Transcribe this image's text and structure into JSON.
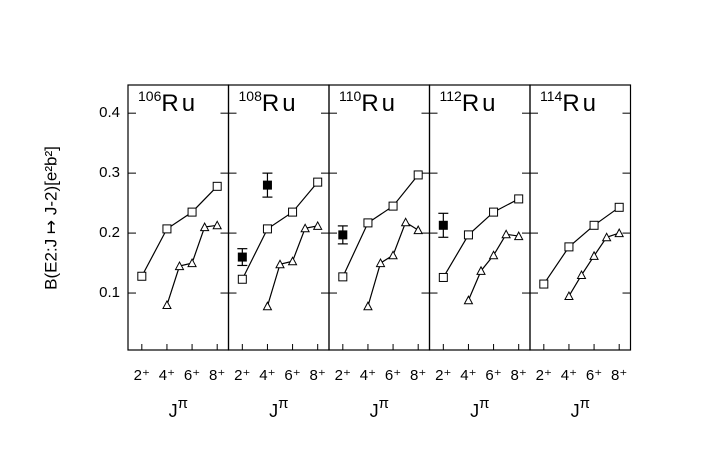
{
  "y_label": "B(E2:J ↦ J-2)[e²b²]",
  "chart_data": [
    {
      "type": "line",
      "title": {
        "mass": "106",
        "element": "Ru"
      },
      "x_label": {
        "base": "J",
        "sup": "π"
      },
      "xlim": [
        0.9,
        8.9
      ],
      "ylim": [
        0.005,
        0.447
      ],
      "xticks": [
        {
          "value": 2,
          "label": "2⁺"
        },
        {
          "value": 4,
          "label": "4⁺"
        },
        {
          "value": 6,
          "label": "6⁺"
        },
        {
          "value": 8,
          "label": "8⁺"
        }
      ],
      "yticks": [
        {
          "value": 0.1,
          "label": "0.1"
        },
        {
          "value": 0.2,
          "label": "0.2"
        },
        {
          "value": 0.3,
          "label": "0.3"
        },
        {
          "value": 0.4,
          "label": "0.4"
        }
      ],
      "series": [
        {
          "marker": "square",
          "x": [
            2,
            4,
            6,
            8
          ],
          "values": [
            0.128,
            0.207,
            0.235,
            0.278
          ]
        },
        {
          "marker": "triangle",
          "x": [
            4,
            5,
            6,
            7,
            8
          ],
          "values": [
            0.08,
            0.145,
            0.15,
            0.21,
            0.213
          ]
        }
      ]
    },
    {
      "type": "line",
      "title": {
        "mass": "108",
        "element": "Ru"
      },
      "x_label": {
        "base": "J",
        "sup": "π"
      },
      "xlim": [
        0.9,
        8.9
      ],
      "ylim": [
        0.005,
        0.447
      ],
      "xticks": [
        {
          "value": 2,
          "label": "2⁺"
        },
        {
          "value": 4,
          "label": "4⁺"
        },
        {
          "value": 6,
          "label": "6⁺"
        },
        {
          "value": 8,
          "label": "8⁺"
        }
      ],
      "yticks": [
        0.1,
        0.2,
        0.3,
        0.4
      ],
      "series": [
        {
          "marker": "square",
          "x": [
            2,
            4,
            6,
            8
          ],
          "values": [
            0.123,
            0.207,
            0.235,
            0.285
          ]
        },
        {
          "marker": "triangle",
          "x": [
            4,
            5,
            6,
            7,
            8
          ],
          "values": [
            0.078,
            0.148,
            0.153,
            0.208,
            0.212
          ]
        },
        {
          "marker": "filled-square",
          "x": [
            2,
            4
          ],
          "values": [
            0.16,
            0.28
          ],
          "errors": [
            0.014,
            0.02
          ]
        }
      ]
    },
    {
      "type": "line",
      "title": {
        "mass": "110",
        "element": "Ru"
      },
      "x_label": {
        "base": "J",
        "sup": "π"
      },
      "xlim": [
        0.9,
        8.9
      ],
      "ylim": [
        0.005,
        0.447
      ],
      "xticks": [
        {
          "value": 2,
          "label": "2⁺"
        },
        {
          "value": 4,
          "label": "4⁺"
        },
        {
          "value": 6,
          "label": "6⁺"
        },
        {
          "value": 8,
          "label": "8⁺"
        }
      ],
      "yticks": [
        0.1,
        0.2,
        0.3,
        0.4
      ],
      "series": [
        {
          "marker": "square",
          "x": [
            2,
            4,
            6,
            8
          ],
          "values": [
            0.127,
            0.217,
            0.245,
            0.297
          ]
        },
        {
          "marker": "triangle",
          "x": [
            4,
            5,
            6,
            7,
            8
          ],
          "values": [
            0.078,
            0.15,
            0.163,
            0.218,
            0.205
          ]
        },
        {
          "marker": "filled-square",
          "x": [
            2
          ],
          "values": [
            0.197
          ],
          "errors": [
            0.015
          ]
        }
      ]
    },
    {
      "type": "line",
      "title": {
        "mass": "112",
        "element": "Ru"
      },
      "x_label": {
        "base": "J",
        "sup": "π"
      },
      "xlim": [
        0.9,
        8.9
      ],
      "ylim": [
        0.005,
        0.447
      ],
      "xticks": [
        {
          "value": 2,
          "label": "2⁺"
        },
        {
          "value": 4,
          "label": "4⁺"
        },
        {
          "value": 6,
          "label": "6⁺"
        },
        {
          "value": 8,
          "label": "8⁺"
        }
      ],
      "yticks": [
        0.1,
        0.2,
        0.3,
        0.4
      ],
      "series": [
        {
          "marker": "square",
          "x": [
            2,
            4,
            6,
            8
          ],
          "values": [
            0.126,
            0.197,
            0.235,
            0.257
          ]
        },
        {
          "marker": "triangle",
          "x": [
            4,
            5,
            6,
            7,
            8
          ],
          "values": [
            0.088,
            0.137,
            0.163,
            0.198,
            0.195
          ]
        },
        {
          "marker": "filled-square",
          "x": [
            2
          ],
          "values": [
            0.213
          ],
          "errors": [
            0.02
          ]
        }
      ]
    },
    {
      "type": "line",
      "title": {
        "mass": "114",
        "element": "Ru"
      },
      "x_label": {
        "base": "J",
        "sup": "π"
      },
      "xlim": [
        0.9,
        8.9
      ],
      "ylim": [
        0.005,
        0.447
      ],
      "xticks": [
        {
          "value": 2,
          "label": "2⁺"
        },
        {
          "value": 4,
          "label": "4⁺"
        },
        {
          "value": 6,
          "label": "6⁺"
        },
        {
          "value": 8,
          "label": "8⁺"
        }
      ],
      "yticks": [
        0.1,
        0.2,
        0.3,
        0.4
      ],
      "series": [
        {
          "marker": "square",
          "x": [
            2,
            4,
            6,
            8
          ],
          "values": [
            0.115,
            0.177,
            0.213,
            0.243
          ]
        },
        {
          "marker": "triangle",
          "x": [
            4,
            5,
            6,
            7,
            8
          ],
          "values": [
            0.095,
            0.13,
            0.162,
            0.193,
            0.2
          ]
        }
      ]
    }
  ]
}
